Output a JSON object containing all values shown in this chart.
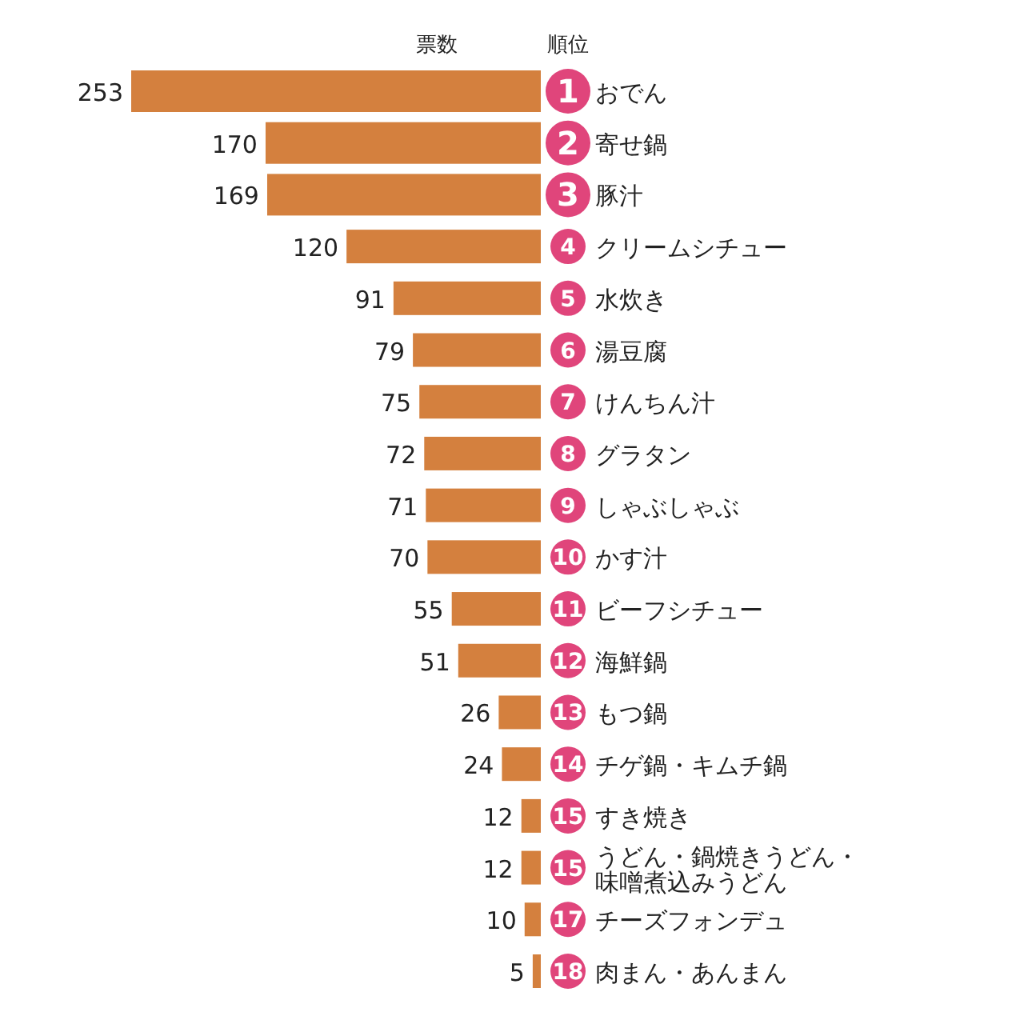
{
  "chart_data": {
    "type": "bar",
    "orientation": "horizontal",
    "xlabel": "票数",
    "data_labels": true,
    "color": "#d4803e",
    "categories": [
      "おでん",
      "寄せ鍋",
      "豚汁",
      "クリームシチュー",
      "水炊き",
      "湯豆腐",
      "けんちん汁",
      "グラタン",
      "しゃぶしゃぶ",
      "かす汁",
      "ビーフシチュー",
      "海鮮鍋",
      "もつ鍋",
      "チゲ鍋・キムチ鍋",
      "すき焼き",
      "うどん・鍋焼きうどん・味噌煮込みうどん",
      "チーズフォンデュ",
      "肉まん・あんまん"
    ],
    "values": [
      253,
      170,
      169,
      120,
      91,
      79,
      75,
      72,
      71,
      70,
      55,
      51,
      26,
      24,
      12,
      12,
      10,
      5
    ],
    "annotations": [
      "順位",
      "1",
      "2",
      "3",
      "4",
      "5",
      "6",
      "7",
      "8",
      "9",
      "10",
      "11",
      "12",
      "13",
      "14",
      "15",
      "15",
      "17",
      "18"
    ]
  }
}
